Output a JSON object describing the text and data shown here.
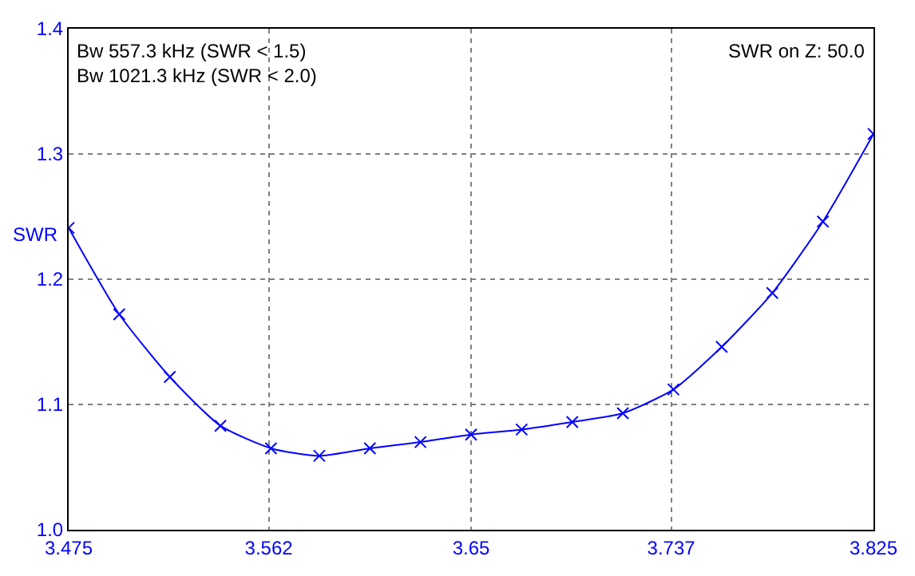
{
  "chart_data": {
    "type": "line",
    "ylabel": "SWR",
    "annotations": [
      "Bw 557.3 kHz (SWR < 1.5)\nBw 1021.3 kHz (SWR < 2.0)",
      "SWR on Z: 50.0"
    ],
    "x": [
      3.475,
      3.497,
      3.519,
      3.541,
      3.563,
      3.584,
      3.606,
      3.628,
      3.65,
      3.672,
      3.694,
      3.716,
      3.738,
      3.759,
      3.781,
      3.803,
      3.825
    ],
    "series": [
      {
        "color": "#0000ff",
        "values": [
          1.241,
          1.172,
          1.122,
          1.083,
          1.065,
          1.059,
          1.065,
          1.07,
          1.076,
          1.08,
          1.086,
          1.093,
          1.112,
          1.146,
          1.189,
          1.246,
          1.316
        ]
      }
    ],
    "xlim": [
      3.475,
      3.825
    ],
    "xticks": [
      3.475,
      3.562,
      3.65,
      3.737,
      3.825
    ],
    "ylim": [
      1.0,
      1.4
    ],
    "yticks": [
      {
        "value": 1.0,
        "label": "1.0"
      },
      1.1,
      1.2,
      1.3,
      1.4
    ],
    "grid": true,
    "marker": "cross",
    "line_style": "solid"
  }
}
